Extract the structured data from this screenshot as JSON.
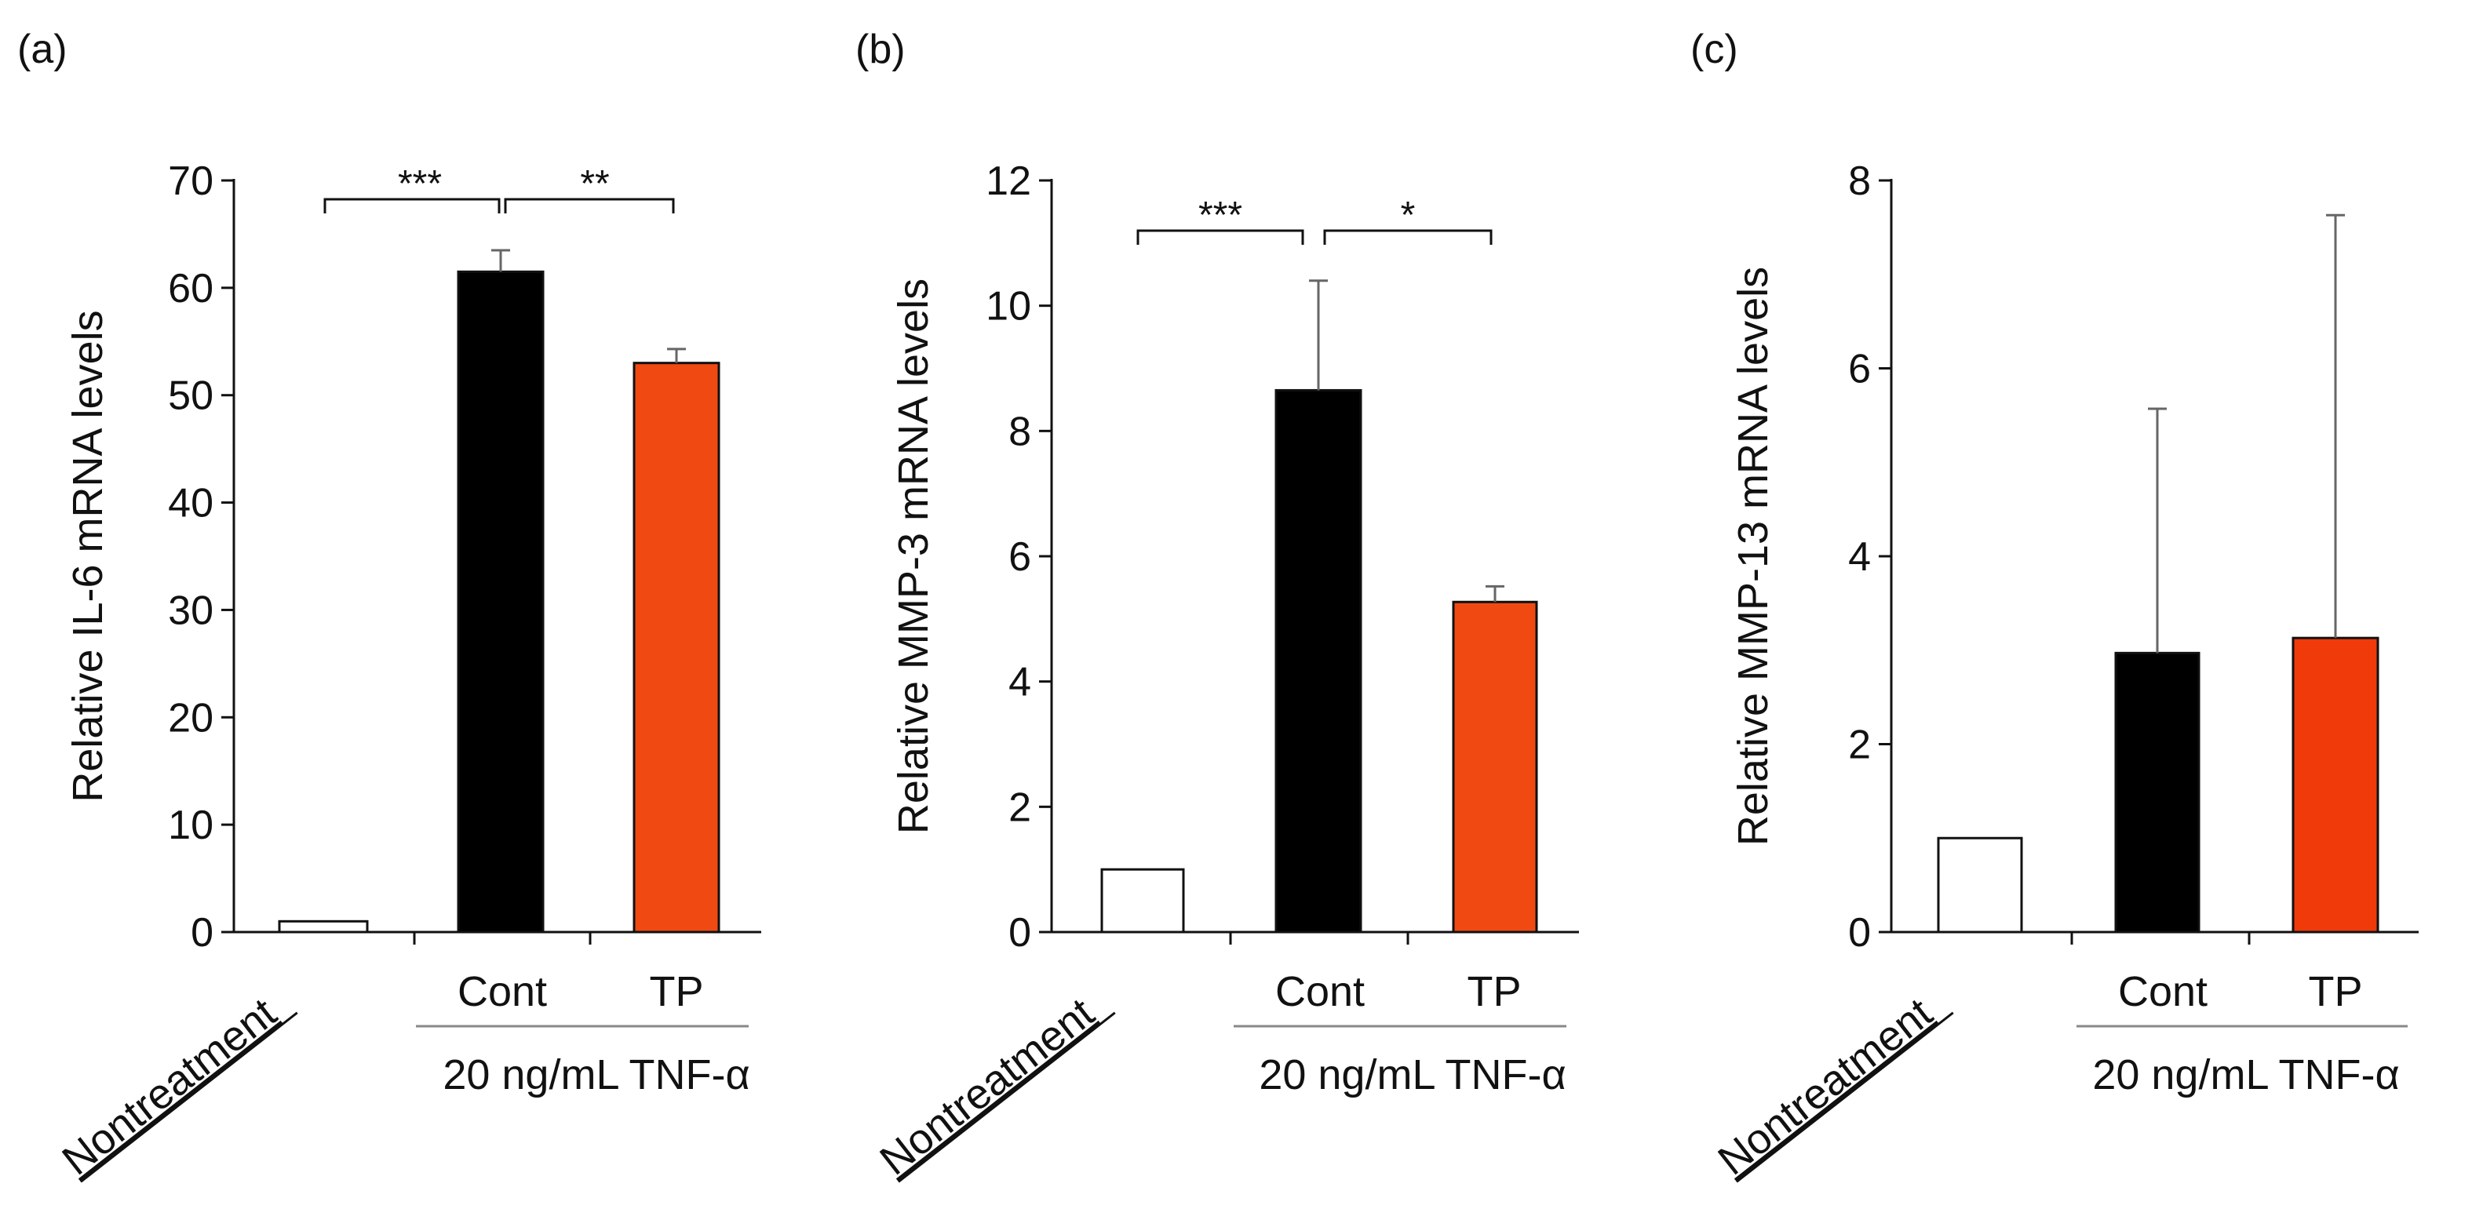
{
  "figure": {
    "panels": [
      {
        "label": "(a)"
      },
      {
        "label": "(b)"
      },
      {
        "label": "(c)"
      }
    ],
    "group_label": "20 ng/mL TNF-α"
  },
  "chart_data": [
    {
      "type": "bar",
      "panel": "(a)",
      "ylabel": "Relative IL-6 mRNA levels",
      "xlabel": "",
      "ylim": [
        0,
        70
      ],
      "yticks": [
        "0",
        "10",
        "20",
        "30",
        "40",
        "50",
        "60",
        "70"
      ],
      "categories": [
        "Nontreatment",
        "Cont",
        "TP"
      ],
      "values": [
        1.0,
        61.5,
        53.0
      ],
      "errors": [
        0,
        2.0,
        1.3
      ],
      "bar_colors": [
        "#ffffff",
        "#000000",
        "#f04a12"
      ],
      "significance": [
        {
          "from": "Nontreatment",
          "to": "Cont",
          "label": "***"
        },
        {
          "from": "Cont",
          "to": "TP",
          "label": "**"
        }
      ],
      "group_label": "20 ng/mL TNF-α"
    },
    {
      "type": "bar",
      "panel": "(b)",
      "ylabel": "Relative MMP-3 mRNA levels",
      "xlabel": "",
      "ylim": [
        0,
        12
      ],
      "yticks": [
        "0",
        "2",
        "4",
        "6",
        "8",
        "10",
        "12"
      ],
      "categories": [
        "Nontreatment",
        "Cont",
        "TP"
      ],
      "values": [
        1.0,
        8.65,
        5.27
      ],
      "errors": [
        0,
        1.75,
        0.25
      ],
      "bar_colors": [
        "#ffffff",
        "#000000",
        "#f04a12"
      ],
      "significance": [
        {
          "from": "Nontreatment",
          "to": "Cont",
          "label": "***"
        },
        {
          "from": "Cont",
          "to": "TP",
          "label": "*"
        }
      ],
      "group_label": "20 ng/mL TNF-α"
    },
    {
      "type": "bar",
      "panel": "(c)",
      "ylabel": "Relative MMP-13 mRNA levels",
      "xlabel": "",
      "ylim": [
        0,
        8
      ],
      "yticks": [
        "0",
        "2",
        "4",
        "6",
        "8"
      ],
      "categories": [
        "Nontreatment",
        "Cont",
        "TP"
      ],
      "values": [
        1.0,
        2.97,
        3.13
      ],
      "errors": [
        0,
        2.6,
        4.5
      ],
      "bar_colors": [
        "#ffffff",
        "#000000",
        "#f03a0a"
      ],
      "significance": [],
      "group_label": "20 ng/mL TNF-α"
    }
  ]
}
